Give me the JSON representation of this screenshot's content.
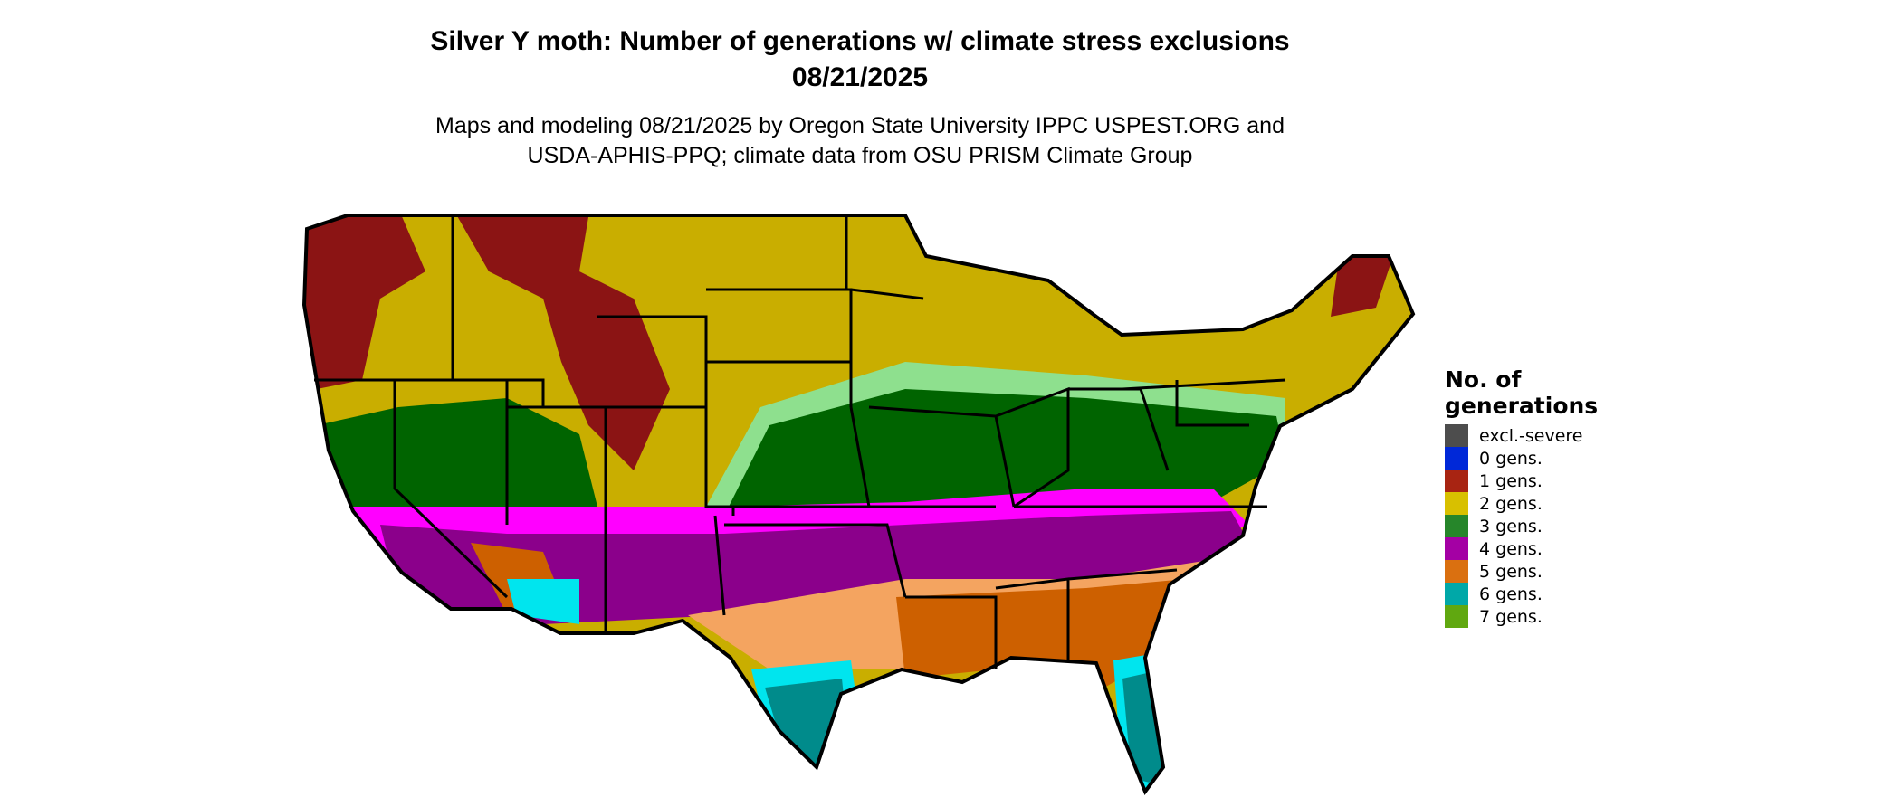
{
  "title": {
    "line1": "Silver Y moth: Number of generations w/ climate stress exclusions",
    "line2": "08/21/2025"
  },
  "subtitle": {
    "line1": "Maps and modeling 08/21/2025 by Oregon State University IPPC USPEST.ORG and",
    "line2": "USDA-APHIS-PPQ; climate data from OSU PRISM Climate Group"
  },
  "legend": {
    "title_line1": "No. of",
    "title_line2": "generations",
    "items": [
      {
        "label": "excl.-severe",
        "color": "#4d4d4d"
      },
      {
        "label": "0 gens.",
        "color": "#0028d8"
      },
      {
        "label": "1 gens.",
        "color": "#a82412"
      },
      {
        "label": "2 gens.",
        "color": "#d8c000"
      },
      {
        "label": "3 gens.",
        "color": "#26862a"
      },
      {
        "label": "4 gens.",
        "color": "#a400a4"
      },
      {
        "label": "5 gens.",
        "color": "#da7010"
      },
      {
        "label": "6 gens.",
        "color": "#00a8a8"
      },
      {
        "label": "7 gens.",
        "color": "#60a810"
      }
    ]
  },
  "map_colors": {
    "dark_red": "#8b1414",
    "yellow": "#c9ae00",
    "light_green": "#8ee08e",
    "dark_green": "#006400",
    "magenta": "#ff00ff",
    "purple": "#8b008b",
    "light_orange": "#f4a460",
    "dark_orange": "#cd6000",
    "cyan": "#00e5ee",
    "teal": "#008b8b"
  }
}
